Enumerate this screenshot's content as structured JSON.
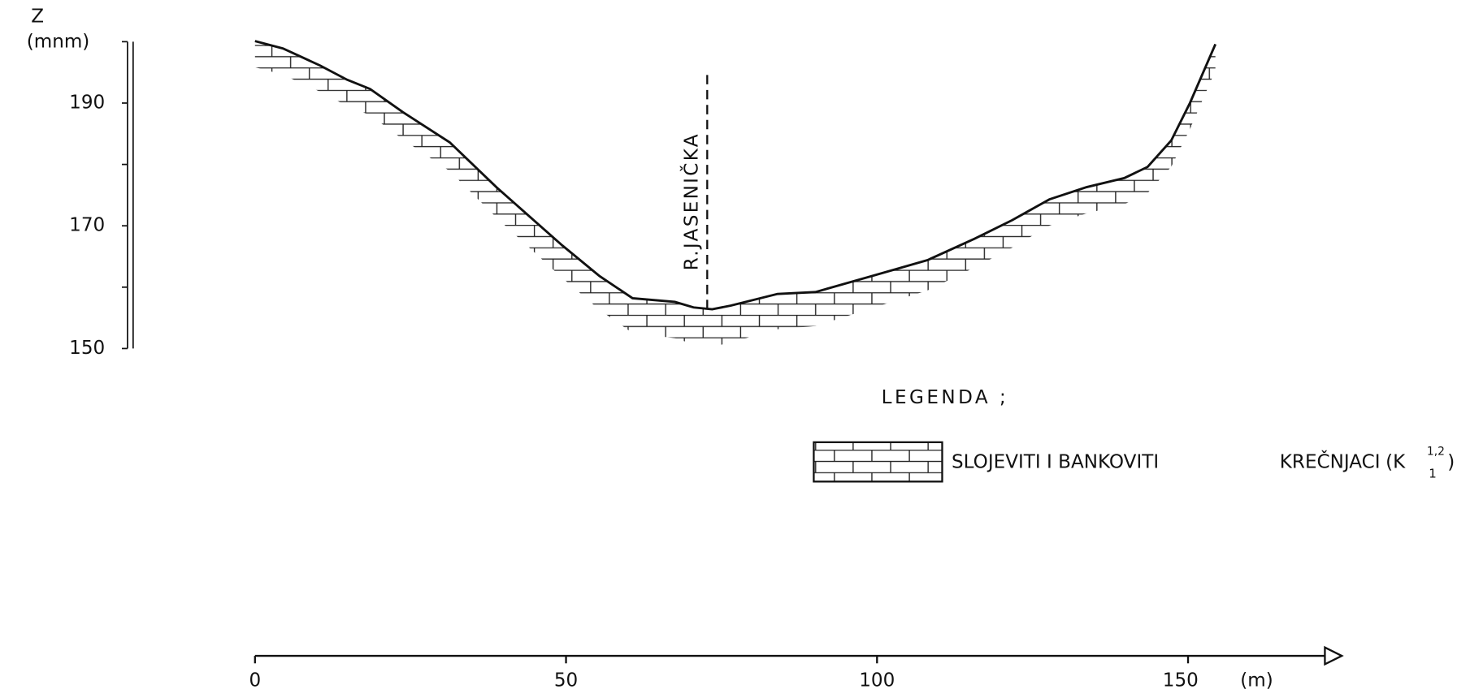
{
  "chart_data": {
    "type": "line",
    "y_label": "Z",
    "y_unit": "(mnm)",
    "x_unit": "(m)",
    "x": [
      0,
      4.5,
      10.5,
      14.8,
      18.5,
      23.8,
      31.3,
      38.8,
      45.6,
      49.4,
      55.4,
      60.7,
      67.5,
      70.5,
      73.5,
      76.5,
      84.0,
      90.1,
      99.1,
      108.1,
      115.7,
      121.7,
      127.7,
      133.7,
      139.8,
      143.5,
      147.3,
      150.3,
      154.4
    ],
    "values": [
      200.1,
      198.9,
      196.1,
      193.8,
      192.3,
      188.5,
      183.6,
      176.3,
      170.2,
      166.8,
      161.8,
      158.2,
      157.6,
      156.7,
      156.4,
      157.0,
      158.9,
      159.2,
      161.8,
      164.4,
      167.9,
      170.9,
      174.3,
      176.3,
      177.8,
      179.6,
      183.9,
      190.0,
      199.6
    ],
    "color": "#111111",
    "xlim": [
      0,
      172
    ],
    "xticks": [
      0,
      50,
      100,
      150
    ],
    "ylim": [
      150,
      200
    ],
    "yticks": [
      150,
      170,
      190
    ],
    "river": {
      "label": "R.JASENIČKA",
      "x": 72.7
    },
    "legend": {
      "title": "LEGENDA ;",
      "label": "SLOJEVITI I BANKOVITI",
      "label2": "KREČNJACI",
      "open": "(K",
      "sup": "1,2",
      "sub": "1",
      "close": ")"
    }
  }
}
